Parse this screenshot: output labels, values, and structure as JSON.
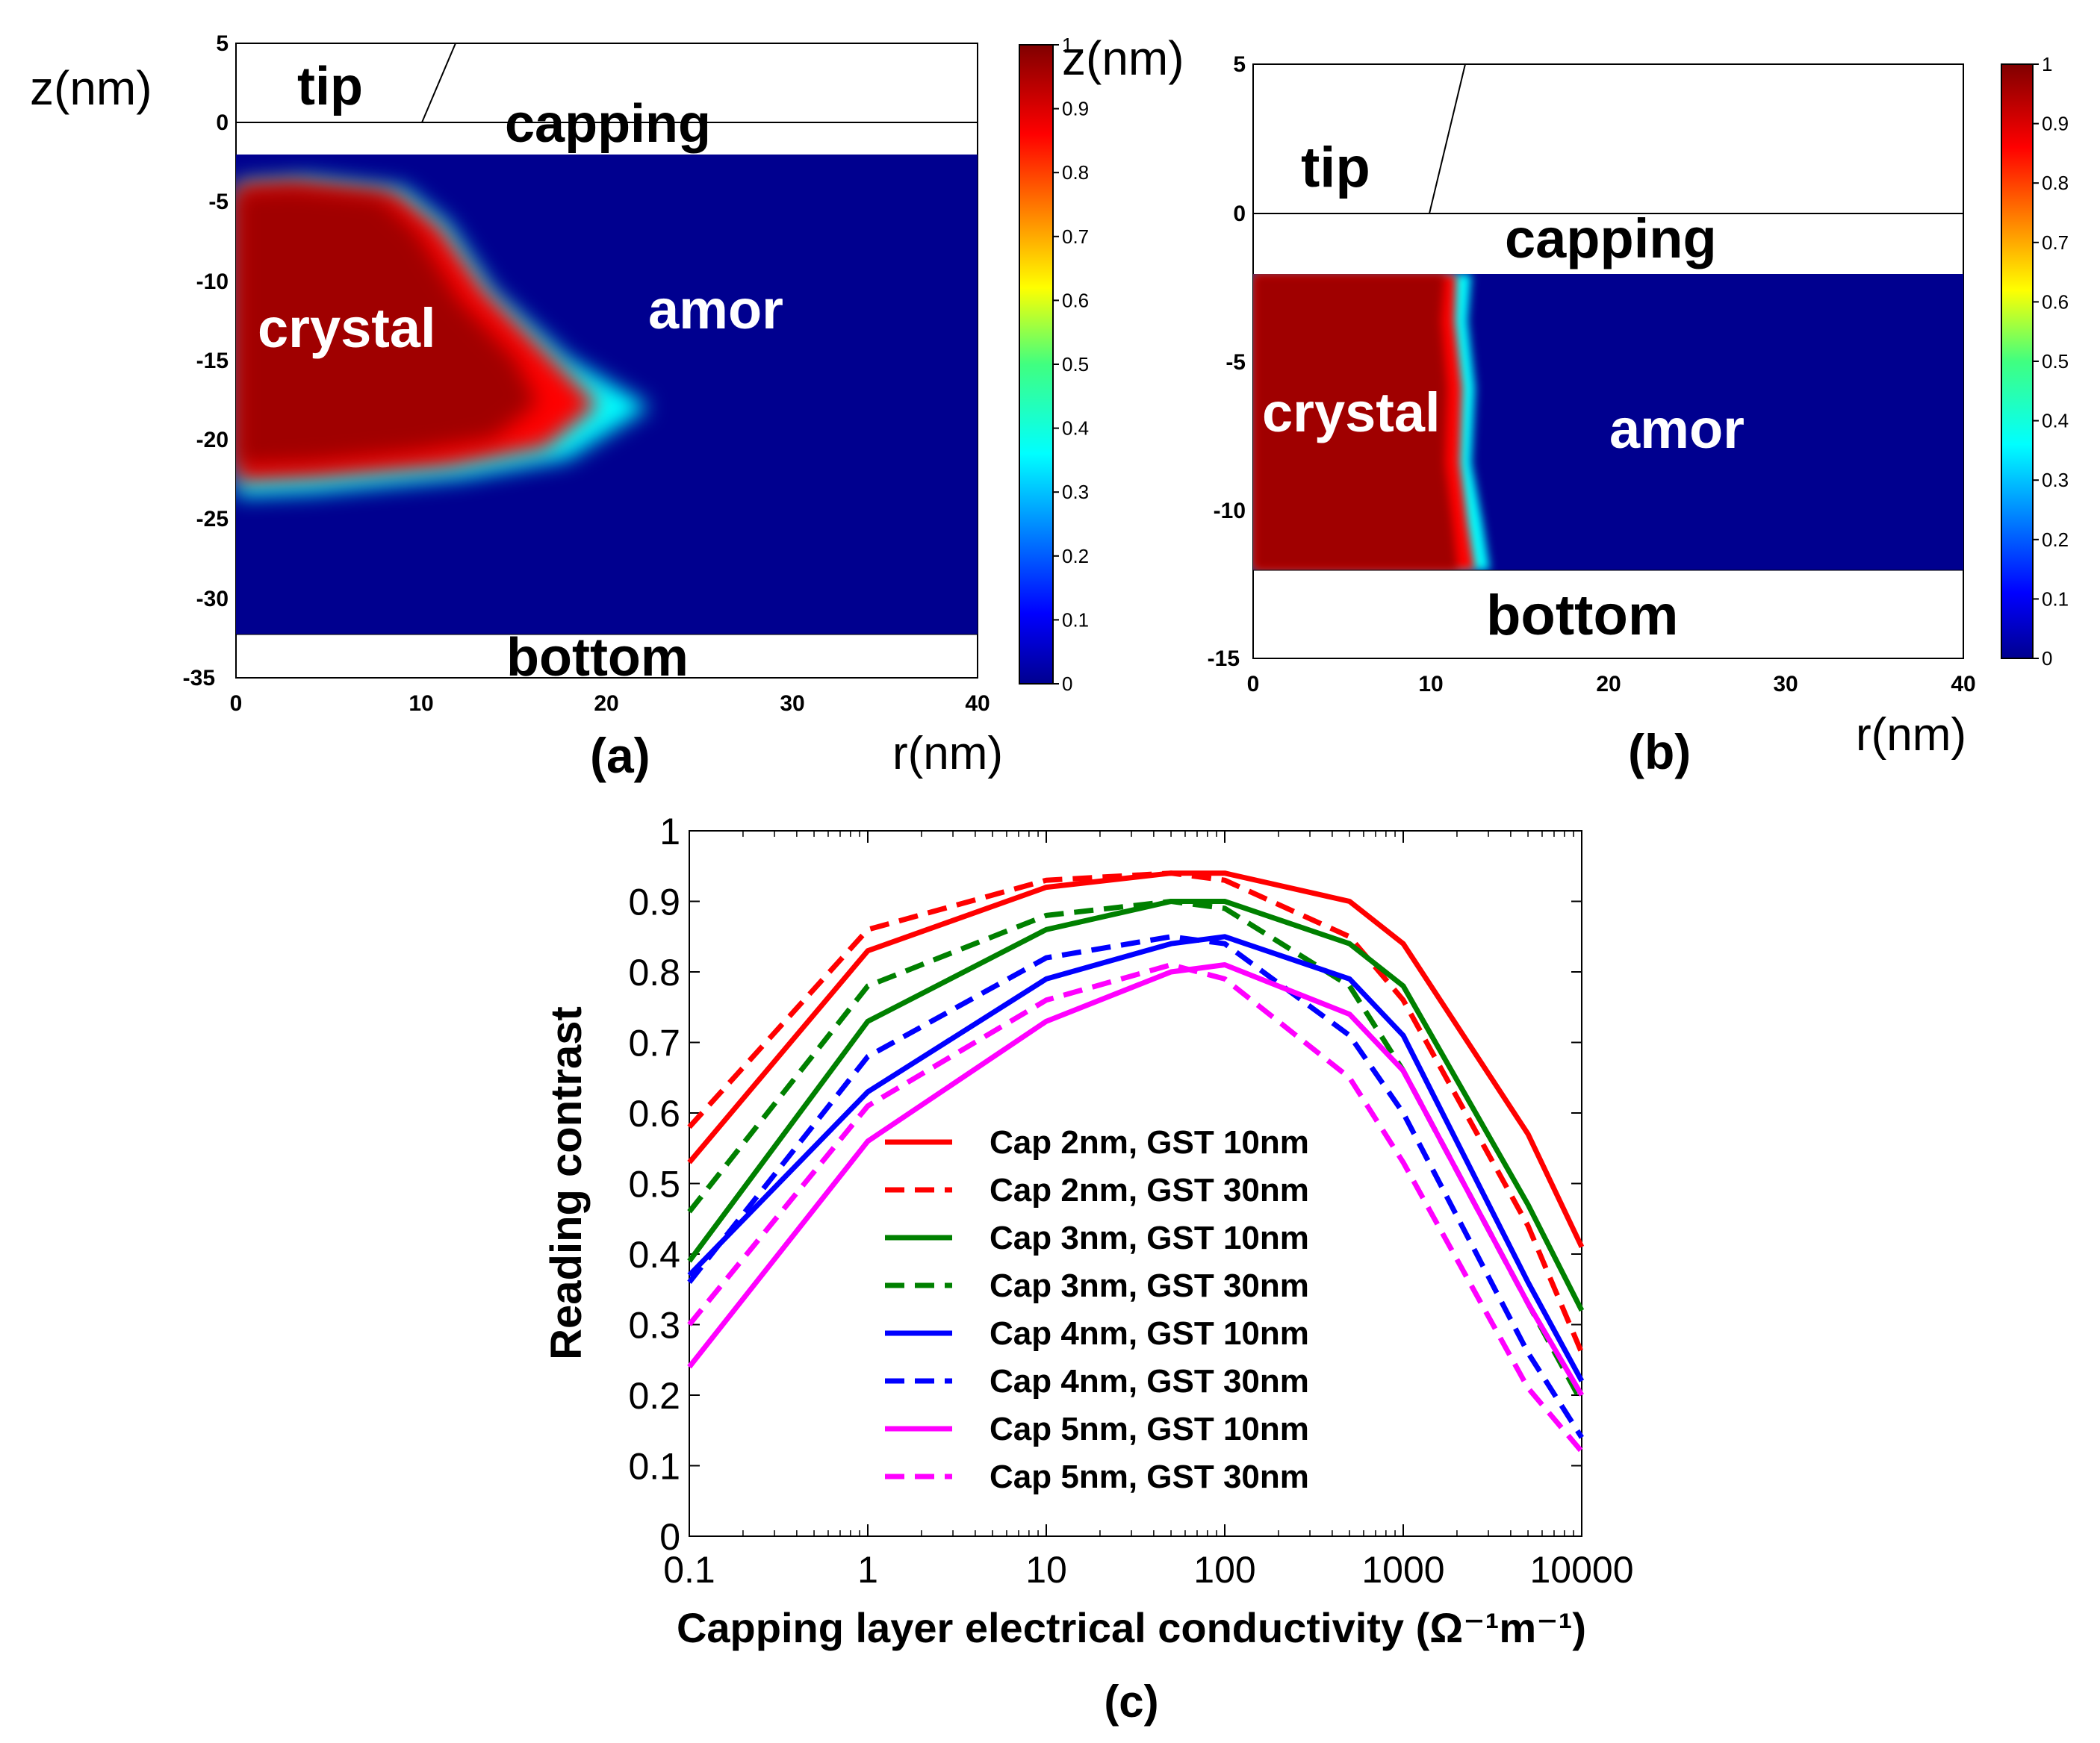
{
  "panel_a": {
    "caption": "(a)",
    "z_label": "z(nm)",
    "r_label": "r(nm)",
    "region_tip": "tip",
    "region_capping": "capping",
    "region_crystal": "crystal",
    "region_amor": "amor",
    "region_bottom": "bottom",
    "x_ticks": [
      "0",
      "10",
      "20",
      "30",
      "40"
    ],
    "y_ticks": [
      "5",
      "0",
      "-5",
      "-10",
      "-15",
      "-20",
      "-25",
      "-30",
      "-35"
    ],
    "colorbar_ticks": [
      "1",
      "0.9",
      "0.8",
      "0.7",
      "0.6",
      "0.5",
      "0.4",
      "0.3",
      "0.2",
      "0.1",
      "0"
    ]
  },
  "panel_b": {
    "caption": "(b)",
    "z_label": "z(nm)",
    "r_label": "r(nm)",
    "region_tip": "tip",
    "region_capping": "capping",
    "region_crystal": "crystal",
    "region_amor": "amor",
    "region_bottom": "bottom",
    "x_ticks": [
      "0",
      "10",
      "20",
      "30",
      "40"
    ],
    "y_ticks": [
      "5",
      "0",
      "-5",
      "-10",
      "-15"
    ],
    "colorbar_ticks": [
      "1",
      "0.9",
      "0.8",
      "0.7",
      "0.6",
      "0.5",
      "0.4",
      "0.3",
      "0.2",
      "0.1",
      "0"
    ]
  },
  "panel_c": {
    "caption": "(c)"
  },
  "chart_data": [
    {
      "type": "heatmap",
      "panel": "a",
      "xlabel": "r(nm)",
      "ylabel": "z(nm)",
      "xlim": [
        0,
        40
      ],
      "ylim": [
        -35,
        5
      ],
      "colorbar_range": [
        0,
        1
      ],
      "annotations": [
        "tip",
        "capping",
        "crystal",
        "amor",
        "bottom"
      ]
    },
    {
      "type": "heatmap",
      "panel": "b",
      "xlabel": "r(nm)",
      "ylabel": "z(nm)",
      "xlim": [
        0,
        40
      ],
      "ylim": [
        -15,
        5
      ],
      "colorbar_range": [
        0,
        1
      ],
      "annotations": [
        "tip",
        "capping",
        "crystal",
        "amor",
        "bottom"
      ]
    },
    {
      "type": "line",
      "panel": "c",
      "xlabel": "Capping layer electrical conductivity (Ω⁻¹m⁻¹)",
      "ylabel": "Reading contrast",
      "x_scale": "log",
      "xlim": [
        0.1,
        10000
      ],
      "ylim": [
        0,
        1
      ],
      "x_tick_labels": [
        "0.1",
        "1",
        "10",
        "100",
        "1000",
        "10000"
      ],
      "y_tick_labels": [
        "0",
        "0.1",
        "0.2",
        "0.3",
        "0.4",
        "0.5",
        "0.6",
        "0.7",
        "0.8",
        "0.9",
        "1"
      ],
      "x": [
        0.1,
        1,
        10,
        50,
        100,
        500,
        1000,
        5000,
        10000
      ],
      "legend_position": "center-left",
      "series": [
        {
          "name": "Cap 2nm, GST 10nm",
          "color": "#ff0000",
          "dash": "solid",
          "values": [
            0.53,
            0.83,
            0.92,
            0.94,
            0.94,
            0.9,
            0.84,
            0.57,
            0.41
          ]
        },
        {
          "name": "Cap 2nm, GST 30nm",
          "color": "#ff0000",
          "dash": "dashed",
          "values": [
            0.58,
            0.86,
            0.93,
            0.94,
            0.93,
            0.85,
            0.76,
            0.44,
            0.26
          ]
        },
        {
          "name": "Cap 3nm, GST 10nm",
          "color": "#008000",
          "dash": "solid",
          "values": [
            0.39,
            0.73,
            0.86,
            0.9,
            0.9,
            0.84,
            0.78,
            0.47,
            0.32
          ]
        },
        {
          "name": "Cap 3nm, GST 30nm",
          "color": "#008000",
          "dash": "dashed",
          "values": [
            0.46,
            0.78,
            0.88,
            0.9,
            0.89,
            0.78,
            0.66,
            0.33,
            0.19
          ]
        },
        {
          "name": "Cap 4nm, GST 10nm",
          "color": "#0000ff",
          "dash": "solid",
          "values": [
            0.37,
            0.63,
            0.79,
            0.84,
            0.85,
            0.79,
            0.71,
            0.36,
            0.22
          ]
        },
        {
          "name": "Cap 4nm, GST 30nm",
          "color": "#0000ff",
          "dash": "dashed",
          "values": [
            0.36,
            0.68,
            0.82,
            0.85,
            0.84,
            0.71,
            0.6,
            0.26,
            0.14
          ]
        },
        {
          "name": "Cap 5nm, GST 10nm",
          "color": "#ff00ff",
          "dash": "solid",
          "values": [
            0.24,
            0.56,
            0.73,
            0.8,
            0.81,
            0.74,
            0.66,
            0.33,
            0.2
          ]
        },
        {
          "name": "Cap 5nm, GST 30nm",
          "color": "#ff00ff",
          "dash": "dashed",
          "values": [
            0.3,
            0.61,
            0.76,
            0.81,
            0.79,
            0.65,
            0.53,
            0.21,
            0.12
          ]
        }
      ]
    }
  ]
}
